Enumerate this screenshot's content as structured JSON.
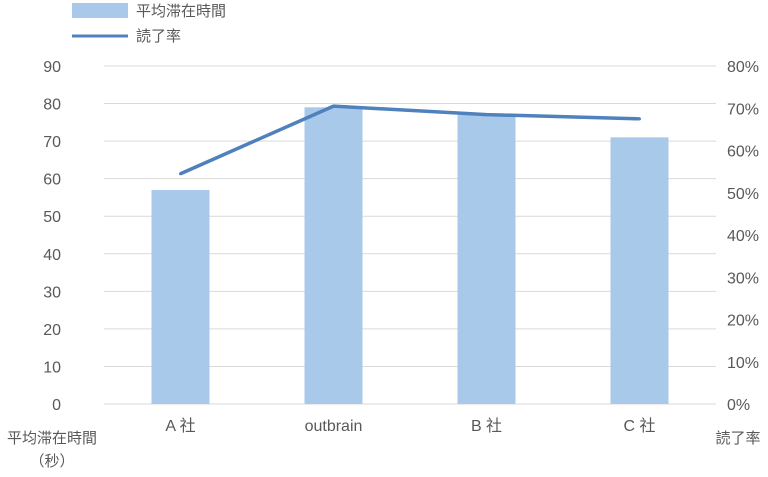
{
  "chart_data": {
    "type": "bar",
    "categories": [
      "A 社",
      "outbrain",
      "B 社",
      "C 社"
    ],
    "series": [
      {
        "name": "平均滞在時間",
        "type": "bar",
        "axis": "left",
        "values": [
          57,
          79,
          77,
          71
        ]
      },
      {
        "name": "読了率",
        "type": "line",
        "axis": "right",
        "values": [
          0.545,
          0.705,
          0.685,
          0.675
        ]
      }
    ],
    "y_left": {
      "label_line1": "平均滞在時間",
      "label_line2": "（秒）",
      "ylim": [
        0,
        90
      ],
      "ticks": [
        "0",
        "10",
        "20",
        "30",
        "40",
        "50",
        "60",
        "70",
        "80",
        "90"
      ]
    },
    "y_right": {
      "label": "読了率",
      "ylim": [
        0,
        0.8
      ],
      "ticks": [
        "0%",
        "10%",
        "20%",
        "30%",
        "40%",
        "50%",
        "60%",
        "70%",
        "80%"
      ]
    },
    "grid": true,
    "legend_position": "top-left",
    "colors": {
      "bar": "#a9c9eb",
      "line": "#4f81bd",
      "grid": "#d9d9d9",
      "text": "#595959"
    }
  }
}
